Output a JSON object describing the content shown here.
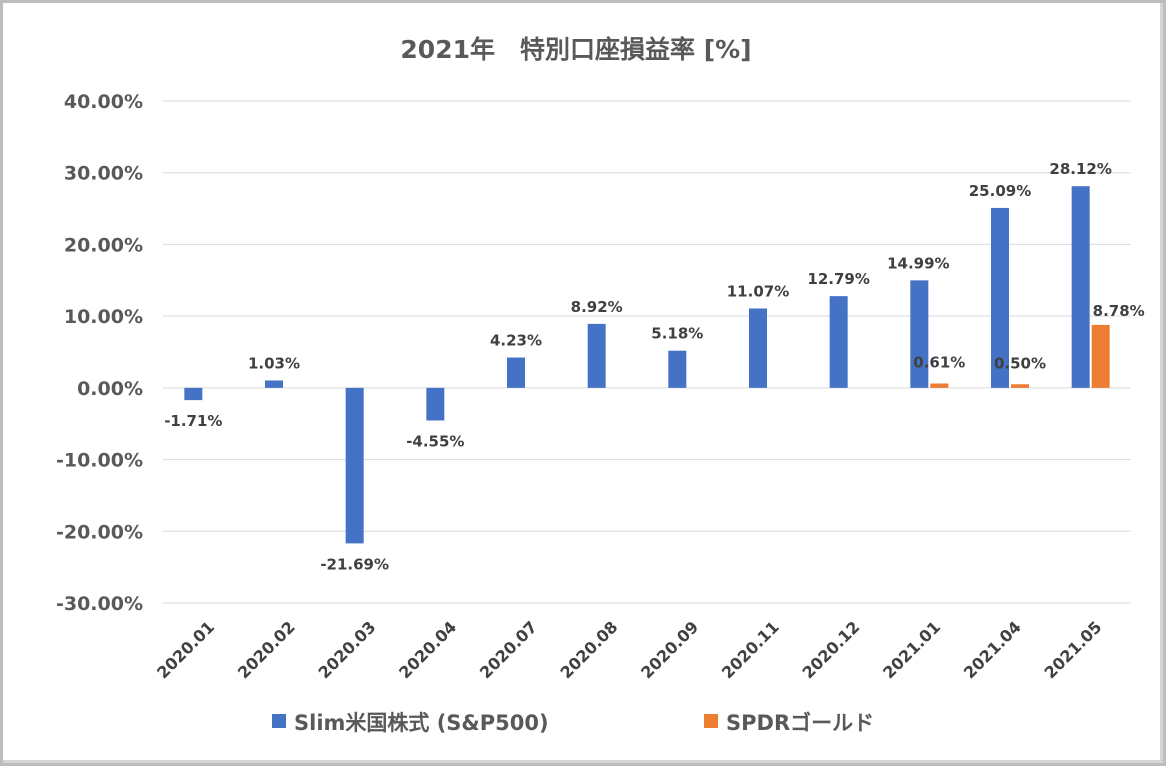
{
  "chart_data": {
    "type": "bar",
    "title": "2021年　特別口座損益率 [%]",
    "categories": [
      "2020.01",
      "2020.02",
      "2020.03",
      "2020.04",
      "2020.07",
      "2020.08",
      "2020.09",
      "2020.11",
      "2020.12",
      "2021.01",
      "2021.04",
      "2021.05"
    ],
    "ylim": [
      -30,
      40
    ],
    "yticks": [
      40,
      30,
      20,
      10,
      0,
      -10,
      -20,
      -30
    ],
    "ytick_labels": [
      "40.00%",
      "30.00%",
      "20.00%",
      "10.00%",
      "0.00%",
      "-10.00%",
      "-20.00%",
      "-30.00%"
    ],
    "grid": true,
    "legend_position": "bottom",
    "series": [
      {
        "name": "Slim米国株式 (S&P500)",
        "color": "#4472C4",
        "values": [
          -1.71,
          1.03,
          -21.69,
          -4.55,
          4.23,
          8.92,
          5.18,
          11.07,
          12.79,
          14.99,
          25.09,
          28.12
        ],
        "labels": [
          "-1.71%",
          "1.03%",
          "-21.69%",
          "-4.55%",
          "4.23%",
          "8.92%",
          "5.18%",
          "11.07%",
          "12.79%",
          "14.99%",
          "25.09%",
          "28.12%"
        ]
      },
      {
        "name": "SPDRゴールド",
        "color": "#ED7D31",
        "values": [
          null,
          null,
          null,
          null,
          null,
          null,
          null,
          null,
          null,
          0.61,
          0.5,
          8.78
        ],
        "labels": [
          null,
          null,
          null,
          null,
          null,
          null,
          null,
          null,
          null,
          "0.61%",
          "0.50%",
          "8.78%"
        ]
      }
    ]
  }
}
